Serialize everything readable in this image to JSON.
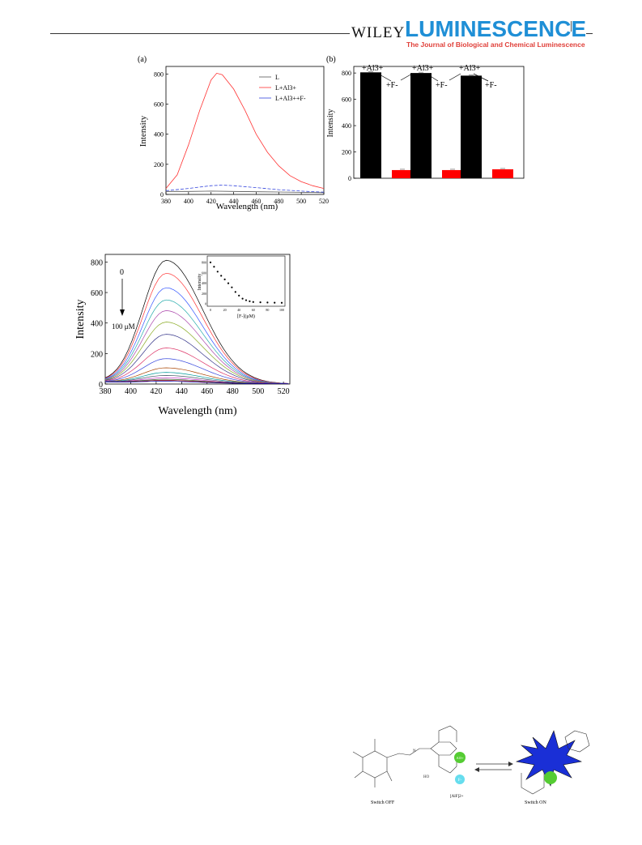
{
  "header": {
    "publisher": "WILEY",
    "journal": "LUMINESCENCE",
    "journal_subtitle": "The Journal of Biological and Chemical Luminescence"
  },
  "figure_a": {
    "panel_label": "(a)",
    "xlabel": "Wavelength (nm)",
    "ylabel": "Intensity",
    "legend": [
      "L",
      "L+Al3+",
      "L+Al3++F-"
    ]
  },
  "figure_b": {
    "panel_label": "(b)",
    "ylabel": "Intensity",
    "annot_al": "+Al3+",
    "annot_f": "+F-"
  },
  "figure_c": {
    "xlabel": "Wavelength (nm)",
    "ylabel": "Intensity",
    "start_label": "0",
    "end_label": "100 μM",
    "inset_ylabel": "Intensity",
    "inset_xlabel": "[F-](μM)"
  },
  "scheme": {
    "switch_off": "Switch OFF",
    "switch_on": "Switch ON",
    "al_badge": "Al3+",
    "f_badge": "F-",
    "alf_label": "[AlF]2+"
  },
  "colors": {
    "brand_blue": "#1f8fd6",
    "brand_red": "#e0403a",
    "bar_black": "#000000",
    "bar_red": "#ff0000"
  },
  "chart_data": [
    {
      "type": "line",
      "panel": "(a)",
      "xlabel": "Wavelength (nm)",
      "ylabel": "Intensity",
      "xlim": [
        380,
        520
      ],
      "ylim": [
        0,
        850
      ],
      "xticks": [
        380,
        400,
        420,
        440,
        460,
        480,
        500,
        520
      ],
      "yticks": [
        0,
        200,
        400,
        600,
        800
      ],
      "legend_position": "top-right",
      "series": [
        {
          "name": "L",
          "color": "#555555",
          "x": [
            380,
            400,
            420,
            440,
            460,
            480,
            500,
            520
          ],
          "y": [
            20,
            20,
            22,
            20,
            18,
            16,
            14,
            12
          ]
        },
        {
          "name": "L+Al3+",
          "color": "#ff3333",
          "x": [
            380,
            390,
            400,
            410,
            420,
            425,
            430,
            440,
            450,
            460,
            470,
            480,
            490,
            500,
            510,
            520
          ],
          "y": [
            40,
            130,
            330,
            560,
            760,
            805,
            795,
            700,
            560,
            400,
            280,
            190,
            125,
            85,
            58,
            40
          ]
        },
        {
          "name": "L+Al3++F-",
          "color": "#3344dd",
          "x": [
            380,
            400,
            420,
            430,
            440,
            460,
            480,
            500,
            520
          ],
          "y": [
            25,
            40,
            58,
            62,
            58,
            45,
            32,
            22,
            15
          ]
        }
      ]
    },
    {
      "type": "bar",
      "panel": "(b)",
      "ylabel": "Intensity",
      "ylim": [
        0,
        850
      ],
      "yticks": [
        0,
        200,
        400,
        600,
        800
      ],
      "categories": [
        "+Al3+",
        "+F-",
        "+Al3+",
        "+F-",
        "+Al3+",
        "+F-"
      ],
      "values": [
        805,
        62,
        800,
        62,
        780,
        68
      ],
      "colors": [
        "#000000",
        "#ff0000",
        "#000000",
        "#ff0000",
        "#000000",
        "#ff0000"
      ]
    },
    {
      "type": "line",
      "panel": "titration",
      "xlabel": "Wavelength (nm)",
      "ylabel": "Intensity",
      "xlim": [
        380,
        525
      ],
      "ylim": [
        0,
        850
      ],
      "xticks": [
        380,
        400,
        420,
        440,
        460,
        480,
        500,
        520
      ],
      "yticks": [
        0,
        200,
        400,
        600,
        800
      ],
      "peak_wavelength": 428,
      "peak_values": [
        805,
        720,
        625,
        545,
        475,
        400,
        320,
        230,
        160,
        100,
        70,
        50,
        35,
        25,
        18,
        12
      ],
      "inset": {
        "type": "scatter",
        "xlabel": "[F-](μM)",
        "ylabel": "Intensity",
        "xlim": [
          0,
          100
        ],
        "ylim": [
          0,
          850
        ],
        "xticks": [
          0,
          20,
          40,
          60,
          80,
          100
        ],
        "yticks": [
          0,
          200,
          400,
          600,
          800
        ],
        "x": [
          0,
          5,
          10,
          15,
          20,
          25,
          30,
          35,
          40,
          45,
          50,
          55,
          60,
          70,
          80,
          90,
          100
        ],
        "y": [
          805,
          720,
          625,
          545,
          475,
          400,
          320,
          230,
          160,
          100,
          70,
          50,
          35,
          30,
          25,
          22,
          20
        ]
      }
    }
  ]
}
